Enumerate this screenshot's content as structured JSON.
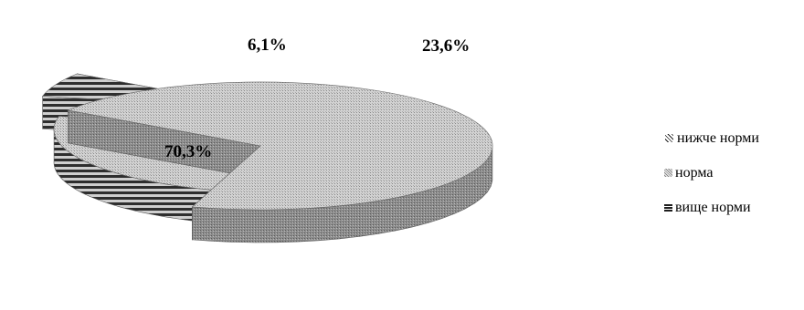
{
  "chart_data": {
    "type": "pie",
    "title": "",
    "categories": [
      "нижче норми",
      "норма",
      "вище норми"
    ],
    "values": [
      70.3,
      23.6,
      6.1
    ],
    "data_labels": [
      "70,3%",
      "23,6%",
      "6,1%"
    ],
    "legend": {
      "position": "right",
      "entries": [
        "нижче норми",
        "норма",
        "вище норми"
      ]
    },
    "colors": {
      "slice_top": "#c9c9c9",
      "slice_side": "#7a7a7a",
      "stripe_dark": "#303030",
      "frame": "#c8c8c8"
    }
  }
}
